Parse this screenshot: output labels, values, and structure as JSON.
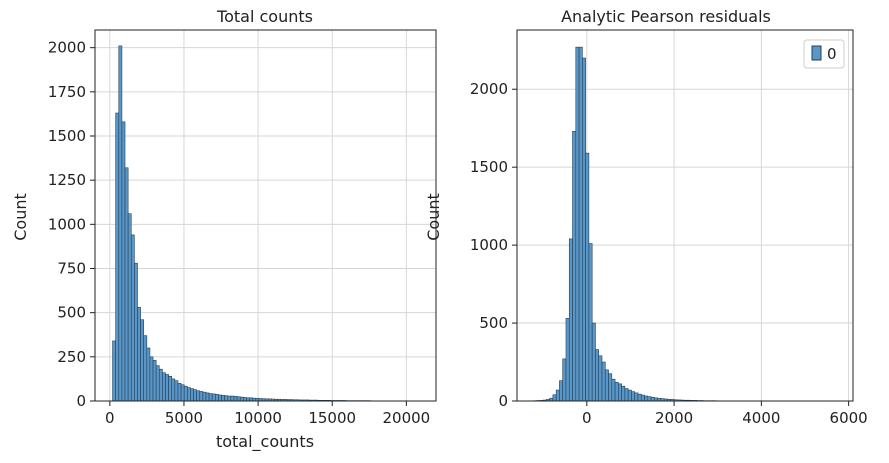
{
  "chart_data": [
    {
      "type": "bar",
      "title": "Total counts",
      "xlabel": "total_counts",
      "ylabel": "Count",
      "xlim": [
        -1000,
        22000
      ],
      "ylim": [
        0,
        2100
      ],
      "grid": true,
      "legend": null,
      "bar_color": "#5b97c6",
      "edge_color": "#1f3f5c",
      "xticks": [
        0,
        5000,
        10000,
        15000,
        20000
      ],
      "xtick_labels": [
        "0",
        "5000",
        "10000",
        "15000",
        "20000"
      ],
      "yticks": [
        0,
        250,
        500,
        750,
        1000,
        1250,
        1500,
        1750,
        2000
      ],
      "ytick_labels": [
        "0",
        "250",
        "500",
        "750",
        "1000",
        "1250",
        "1500",
        "1750",
        "2000"
      ],
      "bin_width": 210,
      "x": [
        290,
        500,
        710,
        920,
        1130,
        1340,
        1550,
        1760,
        1970,
        2180,
        2390,
        2600,
        2810,
        3020,
        3230,
        3440,
        3650,
        3860,
        4070,
        4280,
        4490,
        4700,
        4910,
        5120,
        5330,
        5540,
        5750,
        5960,
        6170,
        6380,
        6590,
        6800,
        7010,
        7220,
        7430,
        7640,
        7850,
        8060,
        8270,
        8480,
        8690,
        8900,
        9110,
        9320,
        9530,
        9740,
        9950,
        10160,
        10370,
        10580,
        10790,
        11000,
        11210,
        11420,
        11630,
        11840,
        12050,
        12260,
        12470,
        12680,
        12890,
        13100,
        13310,
        13520,
        13730,
        13940,
        14150,
        14360,
        14570,
        14780,
        14990,
        15200,
        15410,
        15620,
        15830,
        16040,
        16250,
        16460,
        16670,
        16880,
        17090,
        17300,
        17510,
        17720,
        17930,
        18140,
        18350,
        18560,
        18770,
        18980,
        19190,
        19400,
        19610,
        19820,
        20030,
        20240,
        20450,
        20660,
        20870,
        21080
      ],
      "values": [
        340,
        1630,
        2010,
        1580,
        1320,
        1060,
        940,
        780,
        530,
        460,
        370,
        300,
        250,
        230,
        200,
        180,
        160,
        150,
        140,
        125,
        115,
        100,
        92,
        84,
        76,
        70,
        64,
        58,
        54,
        50,
        46,
        42,
        40,
        38,
        34,
        32,
        30,
        28,
        28,
        26,
        24,
        22,
        20,
        18,
        18,
        16,
        15,
        14,
        13,
        12,
        12,
        11,
        10,
        10,
        9,
        9,
        8,
        8,
        7,
        7,
        6,
        6,
        6,
        5,
        5,
        5,
        4,
        4,
        4,
        4,
        3,
        3,
        3,
        3,
        3,
        2,
        2,
        2,
        2,
        2,
        2,
        2,
        2,
        1,
        1,
        1,
        1,
        1,
        1,
        1,
        1,
        1,
        1,
        1,
        1,
        1,
        1,
        1,
        1,
        1
      ]
    },
    {
      "type": "bar",
      "title": "Analytic Pearson residuals",
      "xlabel": "",
      "ylabel": "Count",
      "xlim": [
        -1600,
        6100
      ],
      "ylim": [
        0,
        2380
      ],
      "grid": true,
      "legend": "top-right",
      "bar_color": "#5b97c6",
      "edge_color": "#1f3f5c",
      "xticks": [
        0,
        2000,
        4000,
        6000
      ],
      "xtick_labels": [
        "0",
        "2000",
        "4000",
        "6000"
      ],
      "yticks": [
        0,
        500,
        1000,
        1500,
        2000
      ],
      "ytick_labels": [
        "0",
        "500",
        "1000",
        "1500",
        "2000"
      ],
      "series": [
        {
          "name": "0",
          "bin_width": 75,
          "x": [
            -1190,
            -1115,
            -1040,
            -965,
            -890,
            -815,
            -740,
            -665,
            -590,
            -515,
            -440,
            -365,
            -290,
            -215,
            -140,
            -65,
            10,
            85,
            160,
            235,
            310,
            385,
            460,
            535,
            610,
            685,
            760,
            835,
            910,
            985,
            1060,
            1135,
            1210,
            1285,
            1360,
            1435,
            1510,
            1585,
            1660,
            1735,
            1810,
            1885,
            1960,
            2035,
            2110,
            2185,
            2260,
            2335,
            2410,
            2485,
            2560,
            2635,
            2710,
            2785,
            2860,
            2935,
            3010,
            3085,
            3160,
            3235
          ],
          "values": [
            2,
            3,
            4,
            6,
            10,
            18,
            40,
            70,
            130,
            270,
            530,
            1040,
            1730,
            2270,
            2270,
            2200,
            1590,
            1010,
            500,
            330,
            290,
            250,
            200,
            175,
            140,
            120,
            110,
            95,
            80,
            70,
            60,
            52,
            44,
            38,
            32,
            28,
            24,
            20,
            17,
            15,
            13,
            11,
            10,
            8,
            7,
            6,
            5,
            5,
            4,
            4,
            3,
            3,
            2,
            2,
            2,
            2,
            1,
            1,
            1,
            1
          ]
        }
      ]
    }
  ],
  "colors": {
    "grid": "#d6d6d6",
    "axis": "#222222"
  }
}
